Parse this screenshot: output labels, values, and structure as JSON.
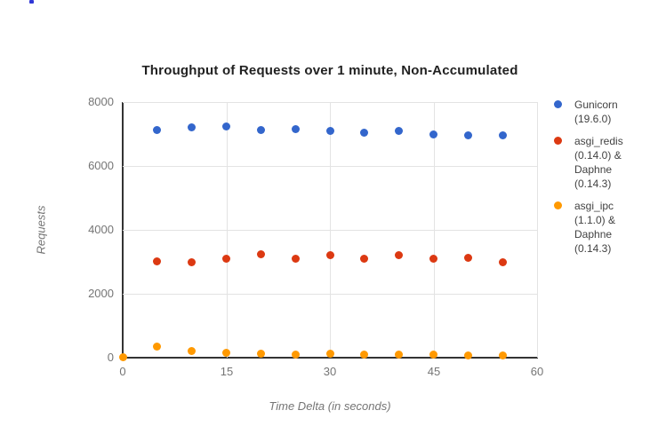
{
  "page": {
    "edge_artifact_color": "#3037d6"
  },
  "chart_data": {
    "type": "scatter",
    "title": "Throughput of Requests over 1 minute, Non-Accumulated",
    "xlabel": "Time Delta (in seconds)",
    "ylabel": "Requests",
    "xlim": [
      0,
      60
    ],
    "ylim": [
      0,
      8000
    ],
    "x_ticks": [
      0,
      15,
      30,
      45,
      60
    ],
    "y_ticks": [
      0,
      2000,
      4000,
      6000,
      8000
    ],
    "grid": true,
    "legend_position": "right",
    "series": [
      {
        "name": "Gunicorn (19.6.0)",
        "legend_lines": [
          "Gunicorn",
          "(19.6.0)"
        ],
        "color": "#3366cc",
        "points": [
          [
            5,
            7130
          ],
          [
            10,
            7200
          ],
          [
            15,
            7230
          ],
          [
            20,
            7120
          ],
          [
            25,
            7140
          ],
          [
            30,
            7110
          ],
          [
            35,
            7030
          ],
          [
            40,
            7110
          ],
          [
            45,
            7000
          ],
          [
            50,
            6970
          ],
          [
            55,
            6950
          ]
        ]
      },
      {
        "name": "asgi_redis (0.14.0) & Daphne (0.14.3)",
        "legend_lines": [
          "asgi_redis",
          "(0.14.0) &",
          "Daphne",
          "(0.14.3)"
        ],
        "color": "#dc3912",
        "points": [
          [
            5,
            3020
          ],
          [
            10,
            3000
          ],
          [
            15,
            3090
          ],
          [
            20,
            3250
          ],
          [
            25,
            3100
          ],
          [
            30,
            3210
          ],
          [
            35,
            3090
          ],
          [
            40,
            3210
          ],
          [
            45,
            3100
          ],
          [
            50,
            3120
          ],
          [
            55,
            3000
          ]
        ]
      },
      {
        "name": "asgi_ipc (1.1.0) & Daphne (0.14.3)",
        "legend_lines": [
          "asgi_ipc",
          "(1.1.0) &",
          "Daphne",
          "(0.14.3)"
        ],
        "color": "#ff9900",
        "points": [
          [
            0,
            20
          ],
          [
            5,
            360
          ],
          [
            10,
            200
          ],
          [
            15,
            150
          ],
          [
            20,
            120
          ],
          [
            25,
            110
          ],
          [
            30,
            120
          ],
          [
            35,
            100
          ],
          [
            40,
            110
          ],
          [
            45,
            90
          ],
          [
            50,
            80
          ],
          [
            55,
            80
          ]
        ]
      }
    ]
  }
}
